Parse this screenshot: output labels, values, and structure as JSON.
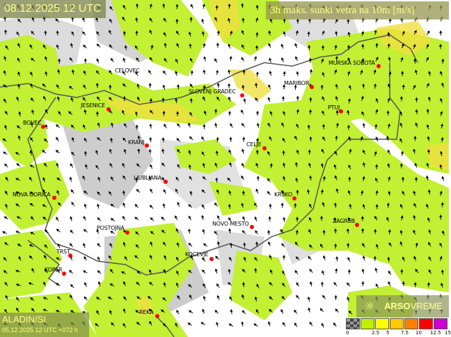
{
  "header": {
    "valid_time": "08.12.2025 12 UTC",
    "parameter_title": "3h maks. sunki vetra na 10m [m/s]"
  },
  "model": {
    "name": "ALADIN/SI",
    "run": "05.12.2025 12 UTC +072 h"
  },
  "brand": {
    "name_bold": "ARSO",
    "name_light": "VREME",
    "icon": "sun-wind-icon"
  },
  "cities": [
    "CELOVEC",
    "SLOVENJ GRADEC",
    "MURSKA SOBOTA",
    "MARIBOR",
    "JESENICE",
    "PTUJ",
    "BOVEC",
    "KRANJ",
    "CELJE",
    "LJUBLJANA",
    "NOVA GORICA",
    "KRSKO",
    "ZAGREB",
    "NOVO MESTO",
    "POSTOJNA",
    "KOCEVJE",
    "TRST",
    "KOPER",
    "REKA"
  ],
  "legend": {
    "ticks": [
      "0",
      "2.5",
      "5",
      "7.5",
      "10",
      "12.5",
      "15"
    ],
    "colors": [
      "#808080",
      "#bff000",
      "#ffff00",
      "#ffc800",
      "#ff8000",
      "#ff0000",
      "#d000d0"
    ]
  },
  "colors": {
    "wind_low": "#c2f032",
    "wind_mid": "#f0e040",
    "city_dot": "#ff0000",
    "title_text": "#ffff80"
  }
}
